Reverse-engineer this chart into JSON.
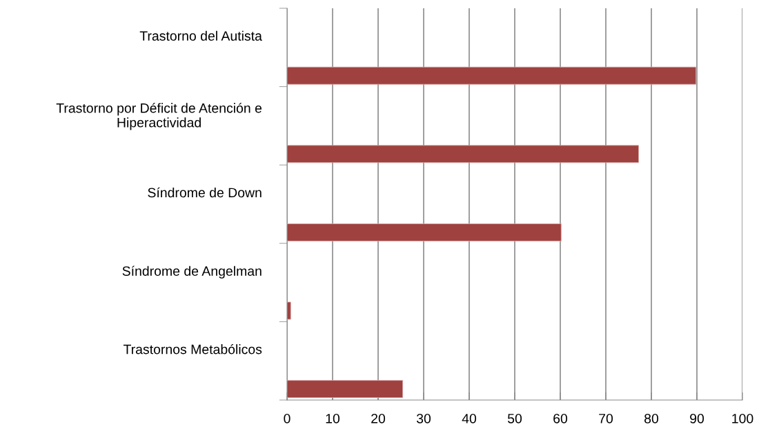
{
  "chart_data": {
    "type": "bar",
    "orientation": "horizontal",
    "categories": [
      "Trastorno del Autista",
      "Trastorno por Déficit de Atención e Hiperactividad",
      "Síndrome de Down",
      "Síndrome de Angelman",
      "Trastornos Metabólicos"
    ],
    "values": [
      89.8,
      77.2,
      60.2,
      0.8,
      25.4
    ],
    "color": "#9e413f",
    "xlim": [
      0,
      100
    ],
    "xticks": [
      0,
      10,
      20,
      30,
      40,
      50,
      60,
      70,
      80,
      90,
      100
    ],
    "grid": "x",
    "legend": false
  }
}
